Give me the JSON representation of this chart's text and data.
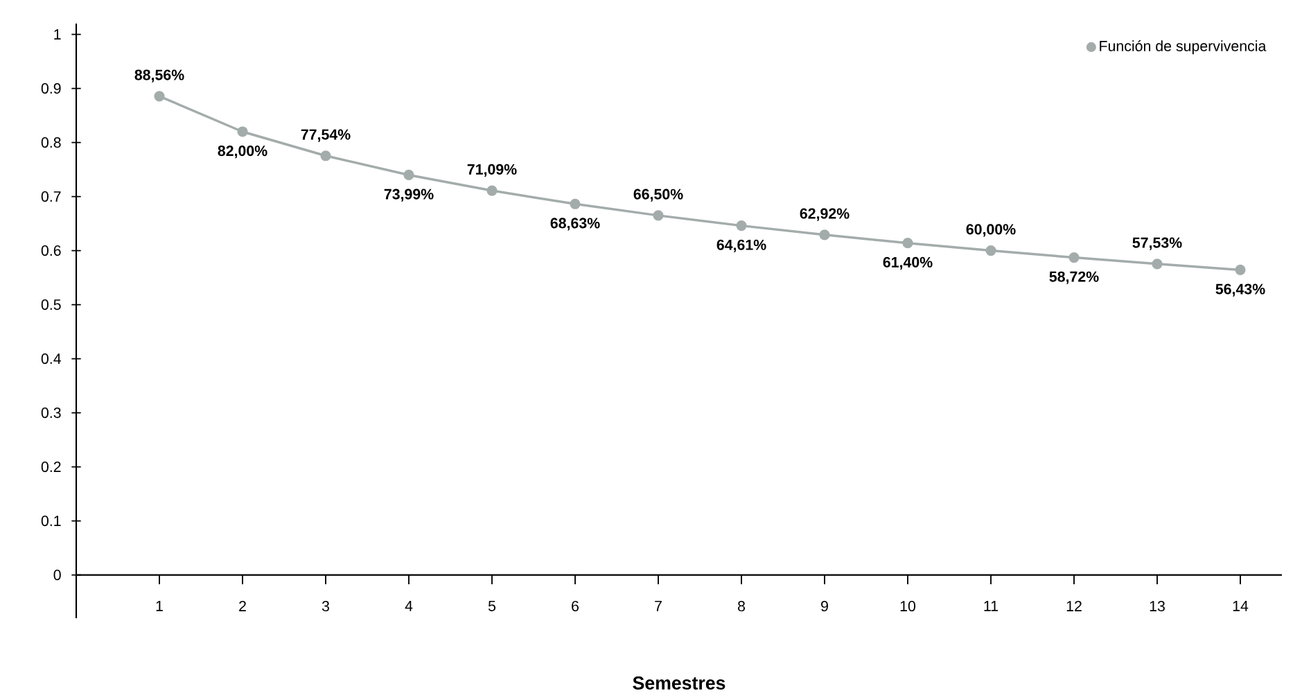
{
  "chart_data": {
    "type": "line",
    "xlabel": "Semestres",
    "x": [
      1,
      2,
      3,
      4,
      5,
      6,
      7,
      8,
      9,
      10,
      11,
      12,
      13,
      14
    ],
    "series": [
      {
        "name": "Función de supervivencia",
        "color": "#a3acab",
        "values": [
          0.8856,
          0.82,
          0.7754,
          0.7399,
          0.7109,
          0.6863,
          0.665,
          0.6461,
          0.6292,
          0.614,
          0.6,
          0.5872,
          0.5753,
          0.5643
        ],
        "value_labels": [
          "88,56%",
          "82,00%",
          "77,54%",
          "73,99%",
          "71,09%",
          "68,63%",
          "66,50%",
          "64,61%",
          "62,92%",
          "61,40%",
          "60,00%",
          "58,72%",
          "57,53%",
          "56,43%"
        ]
      }
    ],
    "xlim": [
      0,
      14.5
    ],
    "ylim": [
      -0.08,
      1.02
    ],
    "xticks": [
      1,
      2,
      3,
      4,
      5,
      6,
      7,
      8,
      9,
      10,
      11,
      12,
      13,
      14
    ],
    "yticks": [
      0,
      0.1,
      0.2,
      0.3,
      0.4,
      0.5,
      0.6,
      0.7,
      0.8,
      0.9,
      1
    ],
    "marker": "circle",
    "line_style": "solid",
    "legend": "top right",
    "grid": false
  }
}
